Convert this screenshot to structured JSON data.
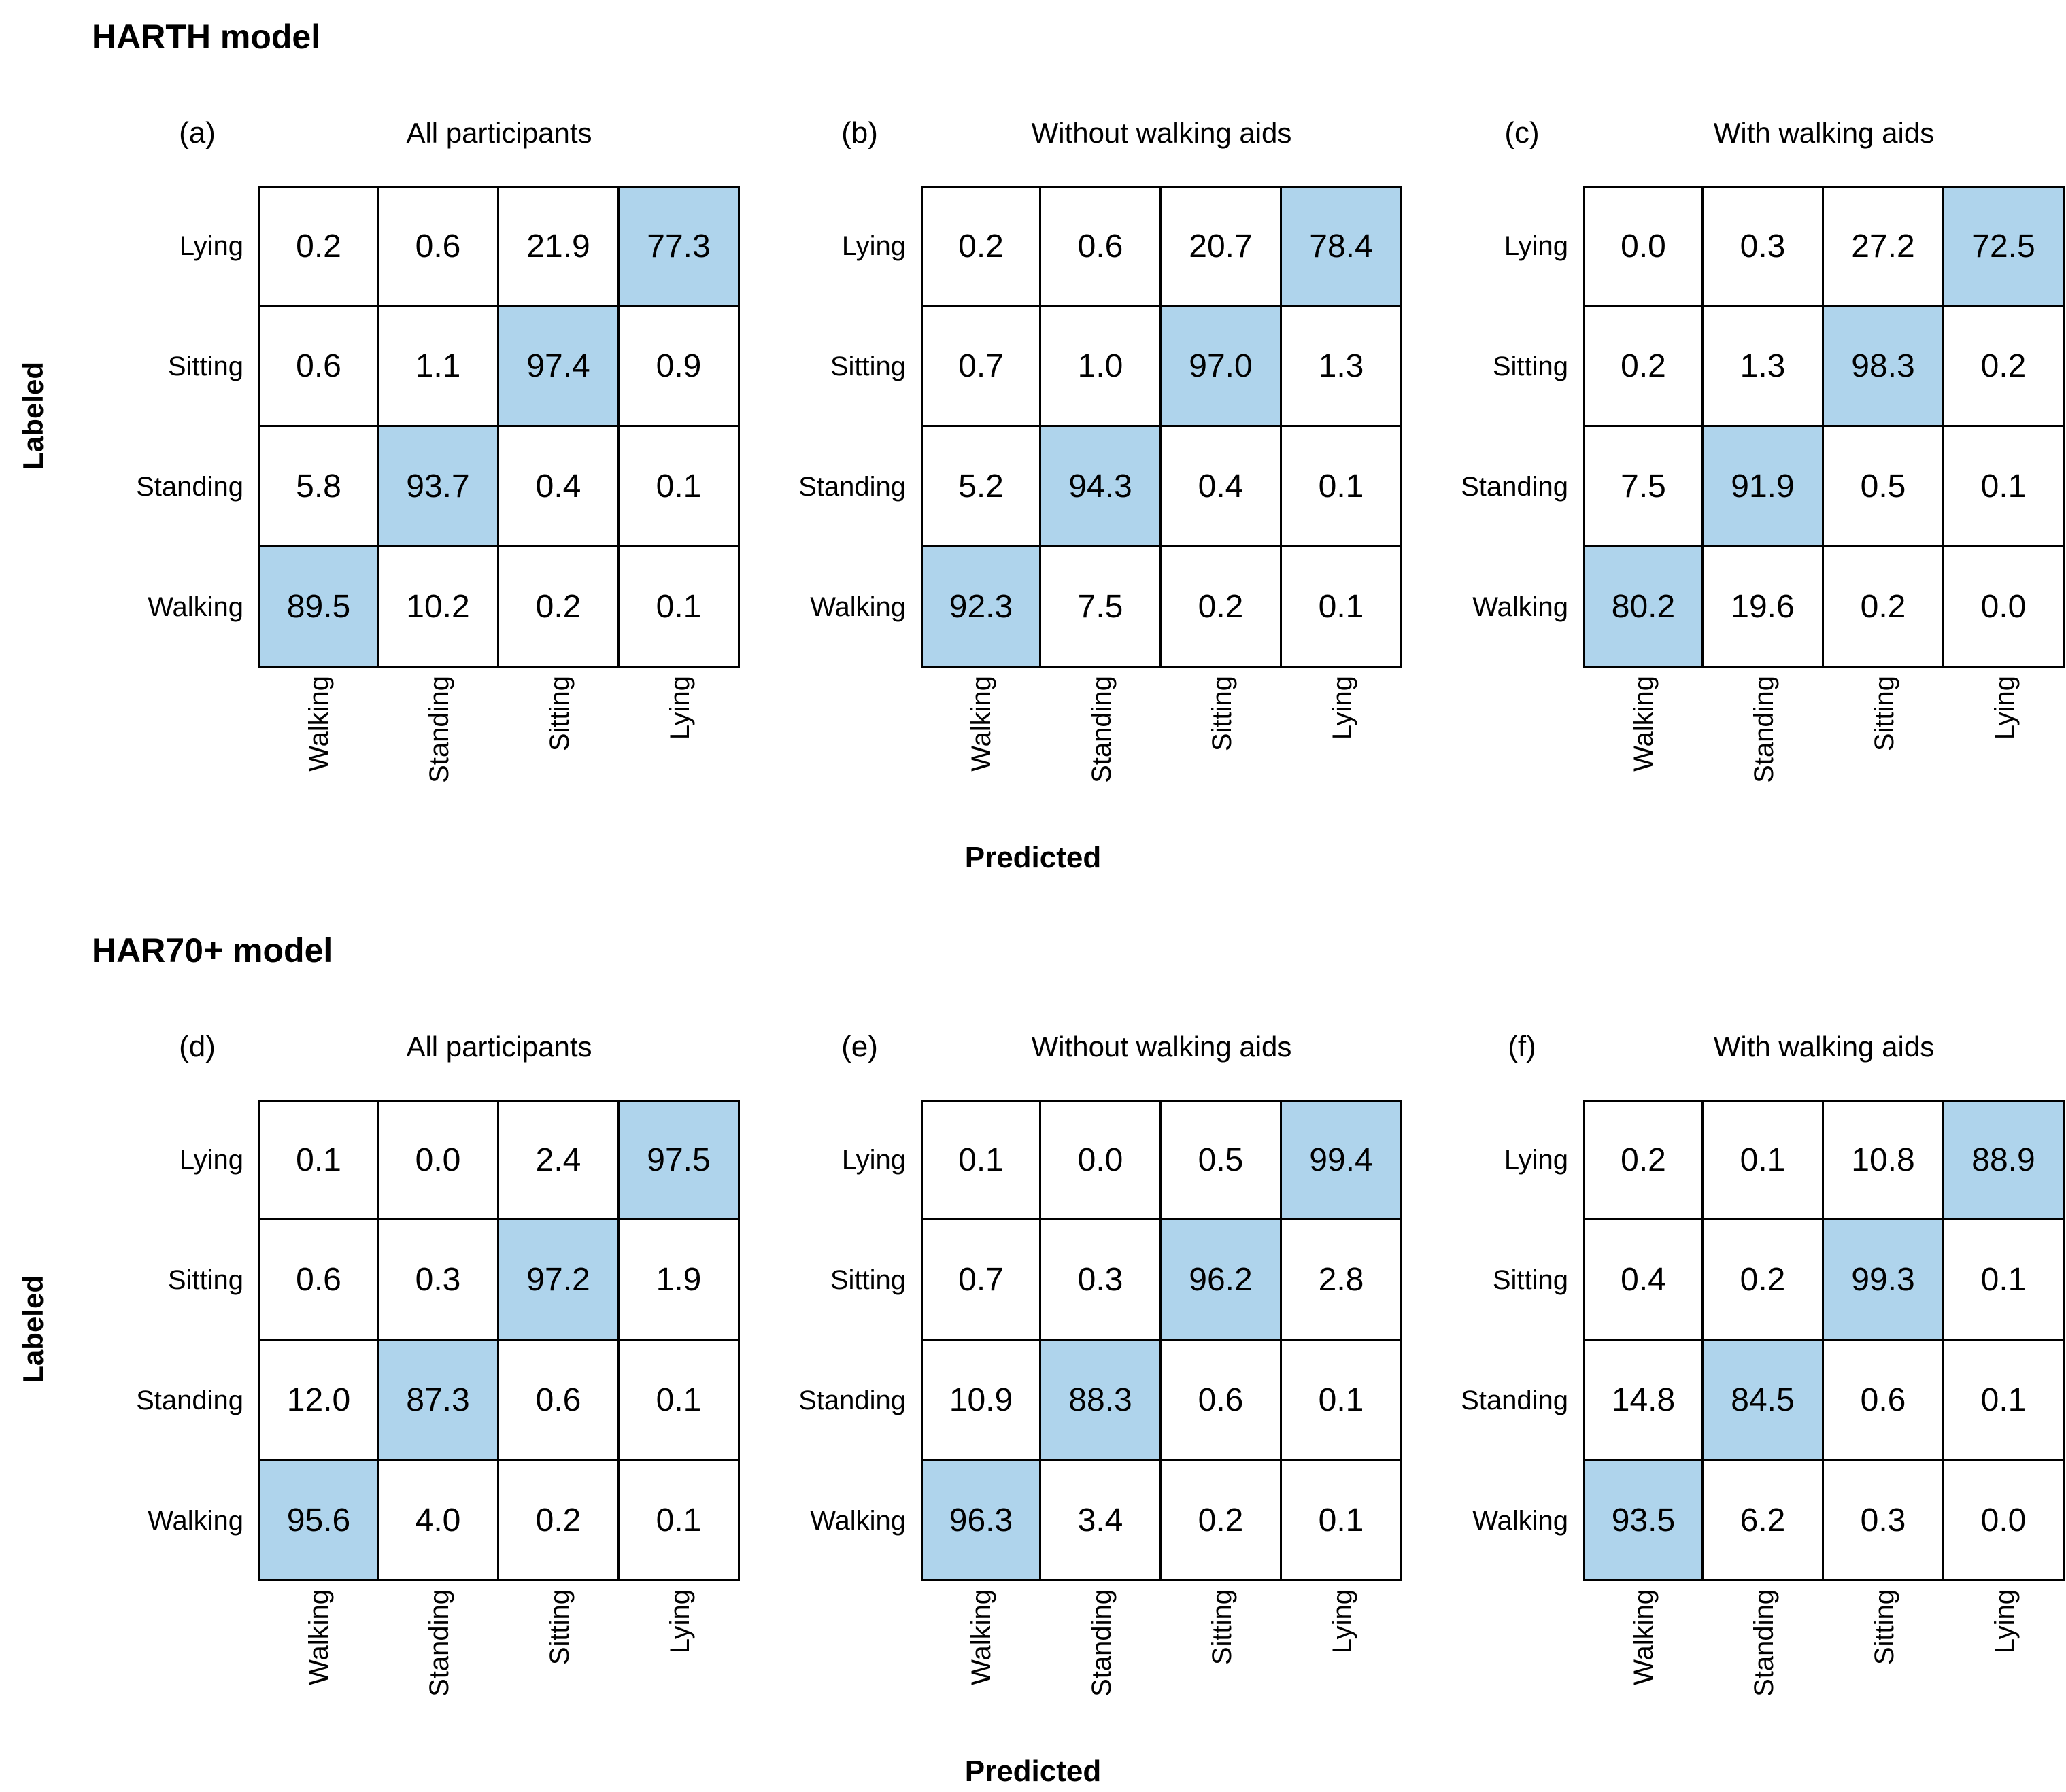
{
  "chart_data": {
    "type": "heatmap",
    "axis": {
      "x_label": "Predicted",
      "y_label": "Labeled"
    },
    "columns": [
      "Walking",
      "Standing",
      "Sitting",
      "Lying"
    ],
    "highlight_color": "#AFD4EC",
    "cell_value_unit": "percent",
    "sections": [
      {
        "title": "HARTH model",
        "panels": [
          {
            "letter": "(a)",
            "title": "All participants",
            "rows": [
              {
                "label": "Lying",
                "values": [
                  "0.2",
                  "0.6",
                  "21.9",
                  "77.3"
                ],
                "highlight": 3
              },
              {
                "label": "Sitting",
                "values": [
                  "0.6",
                  "1.1",
                  "97.4",
                  "0.9"
                ],
                "highlight": 2
              },
              {
                "label": "Standing",
                "values": [
                  "5.8",
                  "93.7",
                  "0.4",
                  "0.1"
                ],
                "highlight": 1
              },
              {
                "label": "Walking",
                "values": [
                  "89.5",
                  "10.2",
                  "0.2",
                  "0.1"
                ],
                "highlight": 0
              }
            ]
          },
          {
            "letter": "(b)",
            "title": "Without walking aids",
            "rows": [
              {
                "label": "Lying",
                "values": [
                  "0.2",
                  "0.6",
                  "20.7",
                  "78.4"
                ],
                "highlight": 3
              },
              {
                "label": "Sitting",
                "values": [
                  "0.7",
                  "1.0",
                  "97.0",
                  "1.3"
                ],
                "highlight": 2
              },
              {
                "label": "Standing",
                "values": [
                  "5.2",
                  "94.3",
                  "0.4",
                  "0.1"
                ],
                "highlight": 1
              },
              {
                "label": "Walking",
                "values": [
                  "92.3",
                  "7.5",
                  "0.2",
                  "0.1"
                ],
                "highlight": 0
              }
            ]
          },
          {
            "letter": "(c)",
            "title": "With walking aids",
            "rows": [
              {
                "label": "Lying",
                "values": [
                  "0.0",
                  "0.3",
                  "27.2",
                  "72.5"
                ],
                "highlight": 3
              },
              {
                "label": "Sitting",
                "values": [
                  "0.2",
                  "1.3",
                  "98.3",
                  "0.2"
                ],
                "highlight": 2
              },
              {
                "label": "Standing",
                "values": [
                  "7.5",
                  "91.9",
                  "0.5",
                  "0.1"
                ],
                "highlight": 1
              },
              {
                "label": "Walking",
                "values": [
                  "80.2",
                  "19.6",
                  "0.2",
                  "0.0"
                ],
                "highlight": 0
              }
            ]
          }
        ]
      },
      {
        "title": "HAR70+ model",
        "panels": [
          {
            "letter": "(d)",
            "title": "All participants",
            "rows": [
              {
                "label": "Lying",
                "values": [
                  "0.1",
                  "0.0",
                  "2.4",
                  "97.5"
                ],
                "highlight": 3
              },
              {
                "label": "Sitting",
                "values": [
                  "0.6",
                  "0.3",
                  "97.2",
                  "1.9"
                ],
                "highlight": 2
              },
              {
                "label": "Standing",
                "values": [
                  "12.0",
                  "87.3",
                  "0.6",
                  "0.1"
                ],
                "highlight": 1
              },
              {
                "label": "Walking",
                "values": [
                  "95.6",
                  "4.0",
                  "0.2",
                  "0.1"
                ],
                "highlight": 0
              }
            ]
          },
          {
            "letter": "(e)",
            "title": "Without walking aids",
            "rows": [
              {
                "label": "Lying",
                "values": [
                  "0.1",
                  "0.0",
                  "0.5",
                  "99.4"
                ],
                "highlight": 3
              },
              {
                "label": "Sitting",
                "values": [
                  "0.7",
                  "0.3",
                  "96.2",
                  "2.8"
                ],
                "highlight": 2
              },
              {
                "label": "Standing",
                "values": [
                  "10.9",
                  "88.3",
                  "0.6",
                  "0.1"
                ],
                "highlight": 1
              },
              {
                "label": "Walking",
                "values": [
                  "96.3",
                  "3.4",
                  "0.2",
                  "0.1"
                ],
                "highlight": 0
              }
            ]
          },
          {
            "letter": "(f)",
            "title": "With walking aids",
            "rows": [
              {
                "label": "Lying",
                "values": [
                  "0.2",
                  "0.1",
                  "10.8",
                  "88.9"
                ],
                "highlight": 3
              },
              {
                "label": "Sitting",
                "values": [
                  "0.4",
                  "0.2",
                  "99.3",
                  "0.1"
                ],
                "highlight": 2
              },
              {
                "label": "Standing",
                "values": [
                  "14.8",
                  "84.5",
                  "0.6",
                  "0.1"
                ],
                "highlight": 1
              },
              {
                "label": "Walking",
                "values": [
                  "93.5",
                  "6.2",
                  "0.3",
                  "0.0"
                ],
                "highlight": 0
              }
            ]
          }
        ]
      }
    ]
  }
}
